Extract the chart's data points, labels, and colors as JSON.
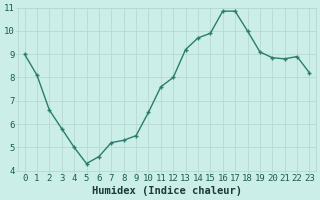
{
  "x": [
    0,
    1,
    2,
    3,
    4,
    5,
    6,
    7,
    8,
    9,
    10,
    11,
    12,
    13,
    14,
    15,
    16,
    17,
    18,
    19,
    20,
    21,
    22,
    23
  ],
  "y": [
    9.0,
    8.1,
    6.6,
    5.8,
    5.0,
    4.3,
    4.6,
    5.2,
    5.3,
    5.5,
    6.5,
    7.6,
    8.0,
    9.2,
    9.7,
    9.9,
    10.85,
    10.85,
    10.0,
    9.1,
    8.85,
    8.8,
    8.9,
    8.2
  ],
  "xlabel": "Humidex (Indice chaleur)",
  "ylim": [
    4,
    11
  ],
  "xlim_min": -0.5,
  "xlim_max": 23.5,
  "yticks": [
    4,
    5,
    6,
    7,
    8,
    9,
    10,
    11
  ],
  "xticks": [
    0,
    1,
    2,
    3,
    4,
    5,
    6,
    7,
    8,
    9,
    10,
    11,
    12,
    13,
    14,
    15,
    16,
    17,
    18,
    19,
    20,
    21,
    22,
    23
  ],
  "line_color": "#2a7d6e",
  "marker_color": "#2a7d6e",
  "bg_color": "#cceee8",
  "grid_color": "#b8d8d2",
  "tick_label_color": "#1a5c52",
  "xlabel_color": "#1a3a34",
  "xlabel_fontsize": 7.5,
  "tick_fontsize": 6.5,
  "line_width": 1.0,
  "marker_size": 2.5
}
